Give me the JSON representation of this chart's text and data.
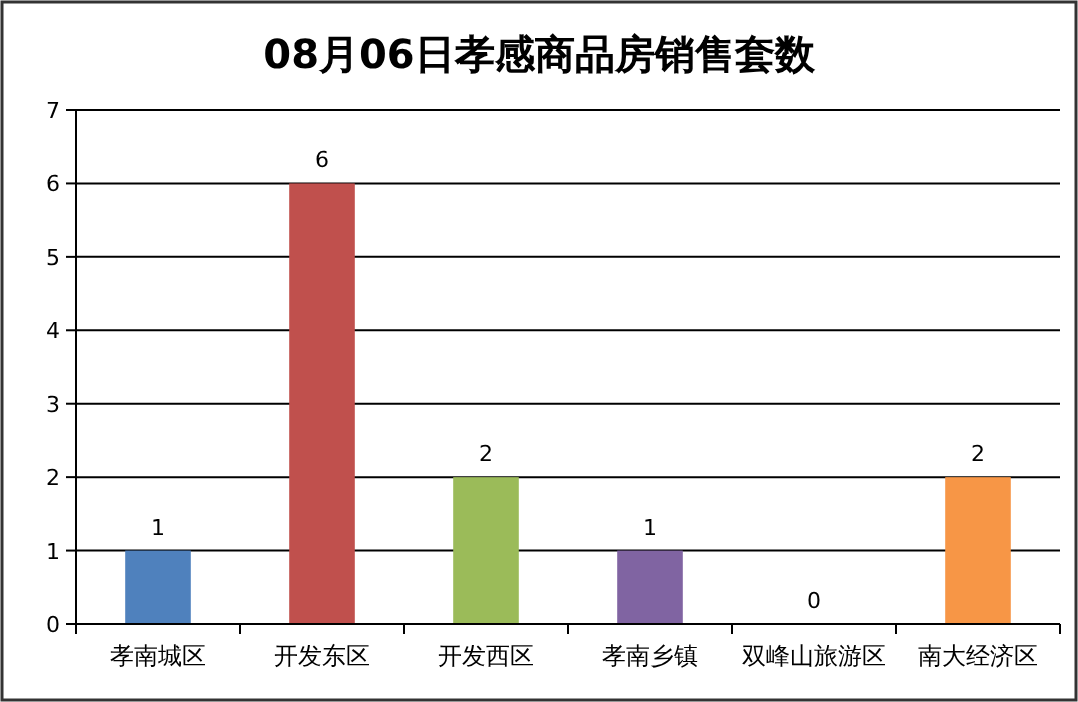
{
  "chart_data": {
    "type": "bar",
    "title": "08月06日孝感商品房销售套数",
    "categories": [
      "孝南城区",
      "开发东区",
      "开发西区",
      "孝南乡镇",
      "双峰山旅游区",
      "南大经济区"
    ],
    "values": [
      1,
      6,
      2,
      1,
      0,
      2
    ],
    "colors": [
      "#4f81bd",
      "#c0504d",
      "#9bbb59",
      "#8064a2",
      "#4bacc6",
      "#f79646"
    ],
    "ylim": [
      0,
      7
    ],
    "yticks": [
      0,
      1,
      2,
      3,
      4,
      5,
      6,
      7
    ],
    "grid": "y",
    "data_labels": true
  }
}
